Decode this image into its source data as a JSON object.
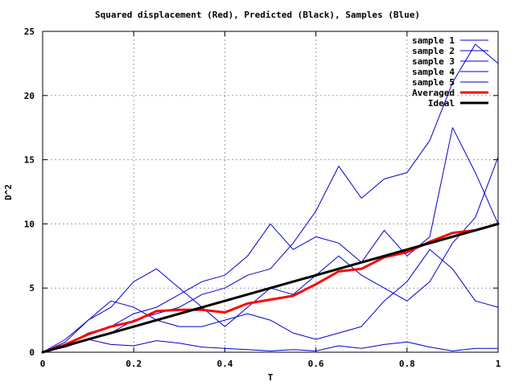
{
  "chart_data": {
    "type": "line",
    "title": "Squared displacement (Red), Predicted (Black), Samples (Blue)",
    "xlabel": "T",
    "ylabel": "D^2",
    "xlim": [
      0,
      1
    ],
    "ylim": [
      0,
      25
    ],
    "x_ticks": [
      0,
      0.2,
      0.4,
      0.6,
      0.8,
      1
    ],
    "x_tick_labels": [
      "0",
      "0.2",
      "0.4",
      "0.6",
      "0.8",
      "1"
    ],
    "y_ticks": [
      0,
      5,
      10,
      15,
      20,
      25
    ],
    "y_tick_labels": [
      "0",
      "5",
      "10",
      "15",
      "20",
      "25"
    ],
    "grid": true,
    "legend_position": "top-right",
    "series": [
      {
        "name": "sample 1",
        "color": "#0000cc",
        "width": 1,
        "x": [
          0,
          0.05,
          0.1,
          0.15,
          0.2,
          0.25,
          0.3,
          0.35,
          0.4,
          0.45,
          0.5,
          0.55,
          0.6,
          0.65,
          0.7,
          0.75,
          0.8,
          0.85,
          0.9,
          0.95,
          1.0
        ],
        "y": [
          0,
          0.4,
          1.0,
          0.6,
          0.5,
          0.9,
          0.7,
          0.4,
          0.3,
          0.2,
          0.1,
          0.2,
          0.1,
          0.5,
          0.3,
          0.6,
          0.8,
          0.4,
          0.1,
          0.3,
          0.3
        ]
      },
      {
        "name": "sample 2",
        "color": "#0000cc",
        "width": 1,
        "x": [
          0,
          0.05,
          0.1,
          0.15,
          0.2,
          0.25,
          0.3,
          0.35,
          0.4,
          0.45,
          0.5,
          0.55,
          0.6,
          0.65,
          0.7,
          0.75,
          0.8,
          0.85,
          0.9,
          0.95,
          1.0
        ],
        "y": [
          0,
          1.0,
          2.5,
          3.5,
          5.5,
          6.5,
          5.0,
          3.5,
          2.0,
          3.5,
          5.0,
          4.5,
          6.0,
          7.5,
          6.0,
          5.0,
          4.0,
          5.5,
          8.5,
          10.5,
          15.2
        ]
      },
      {
        "name": "sample 3",
        "color": "#0000cc",
        "width": 1,
        "x": [
          0,
          0.05,
          0.1,
          0.15,
          0.2,
          0.25,
          0.3,
          0.35,
          0.4,
          0.45,
          0.5,
          0.55,
          0.6,
          0.65,
          0.7,
          0.75,
          0.8,
          0.85,
          0.9,
          0.95,
          1.0
        ],
        "y": [
          0,
          0.8,
          2.5,
          4.0,
          3.5,
          2.5,
          2.0,
          2.0,
          2.5,
          3.0,
          2.5,
          1.5,
          1.0,
          1.5,
          2.0,
          4.0,
          5.5,
          8.0,
          6.5,
          4.0,
          3.5
        ]
      },
      {
        "name": "sample 4",
        "color": "#0000cc",
        "width": 1,
        "x": [
          0,
          0.05,
          0.1,
          0.15,
          0.2,
          0.25,
          0.3,
          0.35,
          0.4,
          0.45,
          0.5,
          0.55,
          0.6,
          0.65,
          0.7,
          0.75,
          0.8,
          0.85,
          0.9,
          0.95,
          1.0
        ],
        "y": [
          0,
          0.5,
          1.0,
          1.5,
          2.5,
          3.0,
          3.5,
          4.5,
          5.0,
          6.0,
          6.5,
          8.5,
          11.0,
          14.5,
          12.0,
          13.5,
          14.0,
          16.5,
          21.0,
          24.0,
          22.5
        ]
      },
      {
        "name": "sample 5",
        "color": "#0000cc",
        "width": 1,
        "x": [
          0,
          0.05,
          0.1,
          0.15,
          0.2,
          0.25,
          0.3,
          0.35,
          0.4,
          0.45,
          0.5,
          0.55,
          0.6,
          0.65,
          0.7,
          0.75,
          0.8,
          0.85,
          0.9,
          0.95,
          1.0
        ],
        "y": [
          0,
          0.5,
          1.5,
          2.0,
          3.0,
          3.5,
          4.5,
          5.5,
          6.0,
          7.5,
          10.0,
          8.0,
          9.0,
          8.5,
          7.0,
          9.5,
          7.5,
          9.0,
          17.5,
          14.0,
          10.0
        ]
      },
      {
        "name": "Averaged",
        "color": "#ff0000",
        "width": 3,
        "x": [
          0,
          0.05,
          0.1,
          0.15,
          0.2,
          0.25,
          0.3,
          0.35,
          0.4,
          0.45,
          0.5,
          0.55,
          0.6,
          0.65,
          0.7,
          0.75,
          0.8,
          0.85,
          0.9,
          0.95,
          1.0
        ],
        "y": [
          0,
          0.6,
          1.4,
          2.0,
          2.4,
          3.2,
          3.3,
          3.3,
          3.1,
          3.8,
          4.1,
          4.4,
          5.3,
          6.3,
          6.5,
          7.4,
          7.8,
          8.6,
          9.3,
          9.5,
          10.0
        ]
      },
      {
        "name": "Ideal",
        "color": "#000000",
        "width": 3,
        "x": [
          0,
          1
        ],
        "y": [
          0,
          10
        ]
      }
    ]
  }
}
